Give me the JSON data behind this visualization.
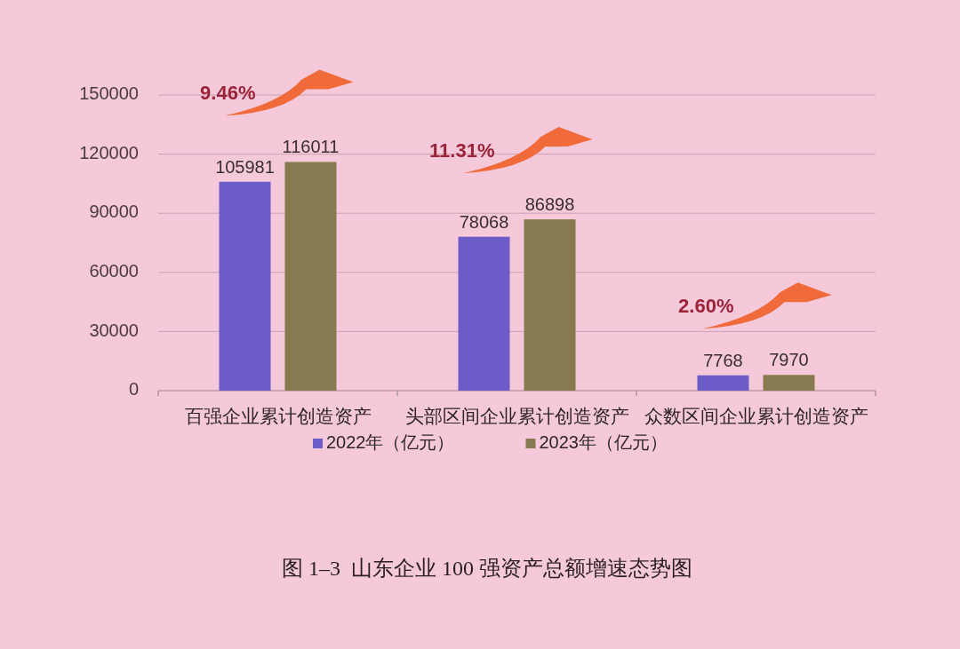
{
  "chart_data": {
    "type": "bar",
    "title": "图 1–3  山东企业 100 强资产总额增速态势图",
    "categories": [
      "百强企业累计创造资产",
      "头部区间企业累计创造资产",
      "众数区间企业累计创造资产"
    ],
    "series": [
      {
        "name": "2022年（亿元）",
        "color": "#6c5cc8",
        "values": [
          105981,
          78068,
          7768
        ]
      },
      {
        "name": "2023年（亿元）",
        "color": "#877a50",
        "values": [
          116011,
          86898,
          7970
        ]
      }
    ],
    "ylim": [
      0,
      150000
    ],
    "yticks": [
      0,
      30000,
      60000,
      90000,
      120000,
      150000
    ],
    "grid": "y",
    "legend": "bottom",
    "data_labels": true,
    "annotations": [
      "9.46%",
      "11.31%",
      "2.60%"
    ]
  }
}
